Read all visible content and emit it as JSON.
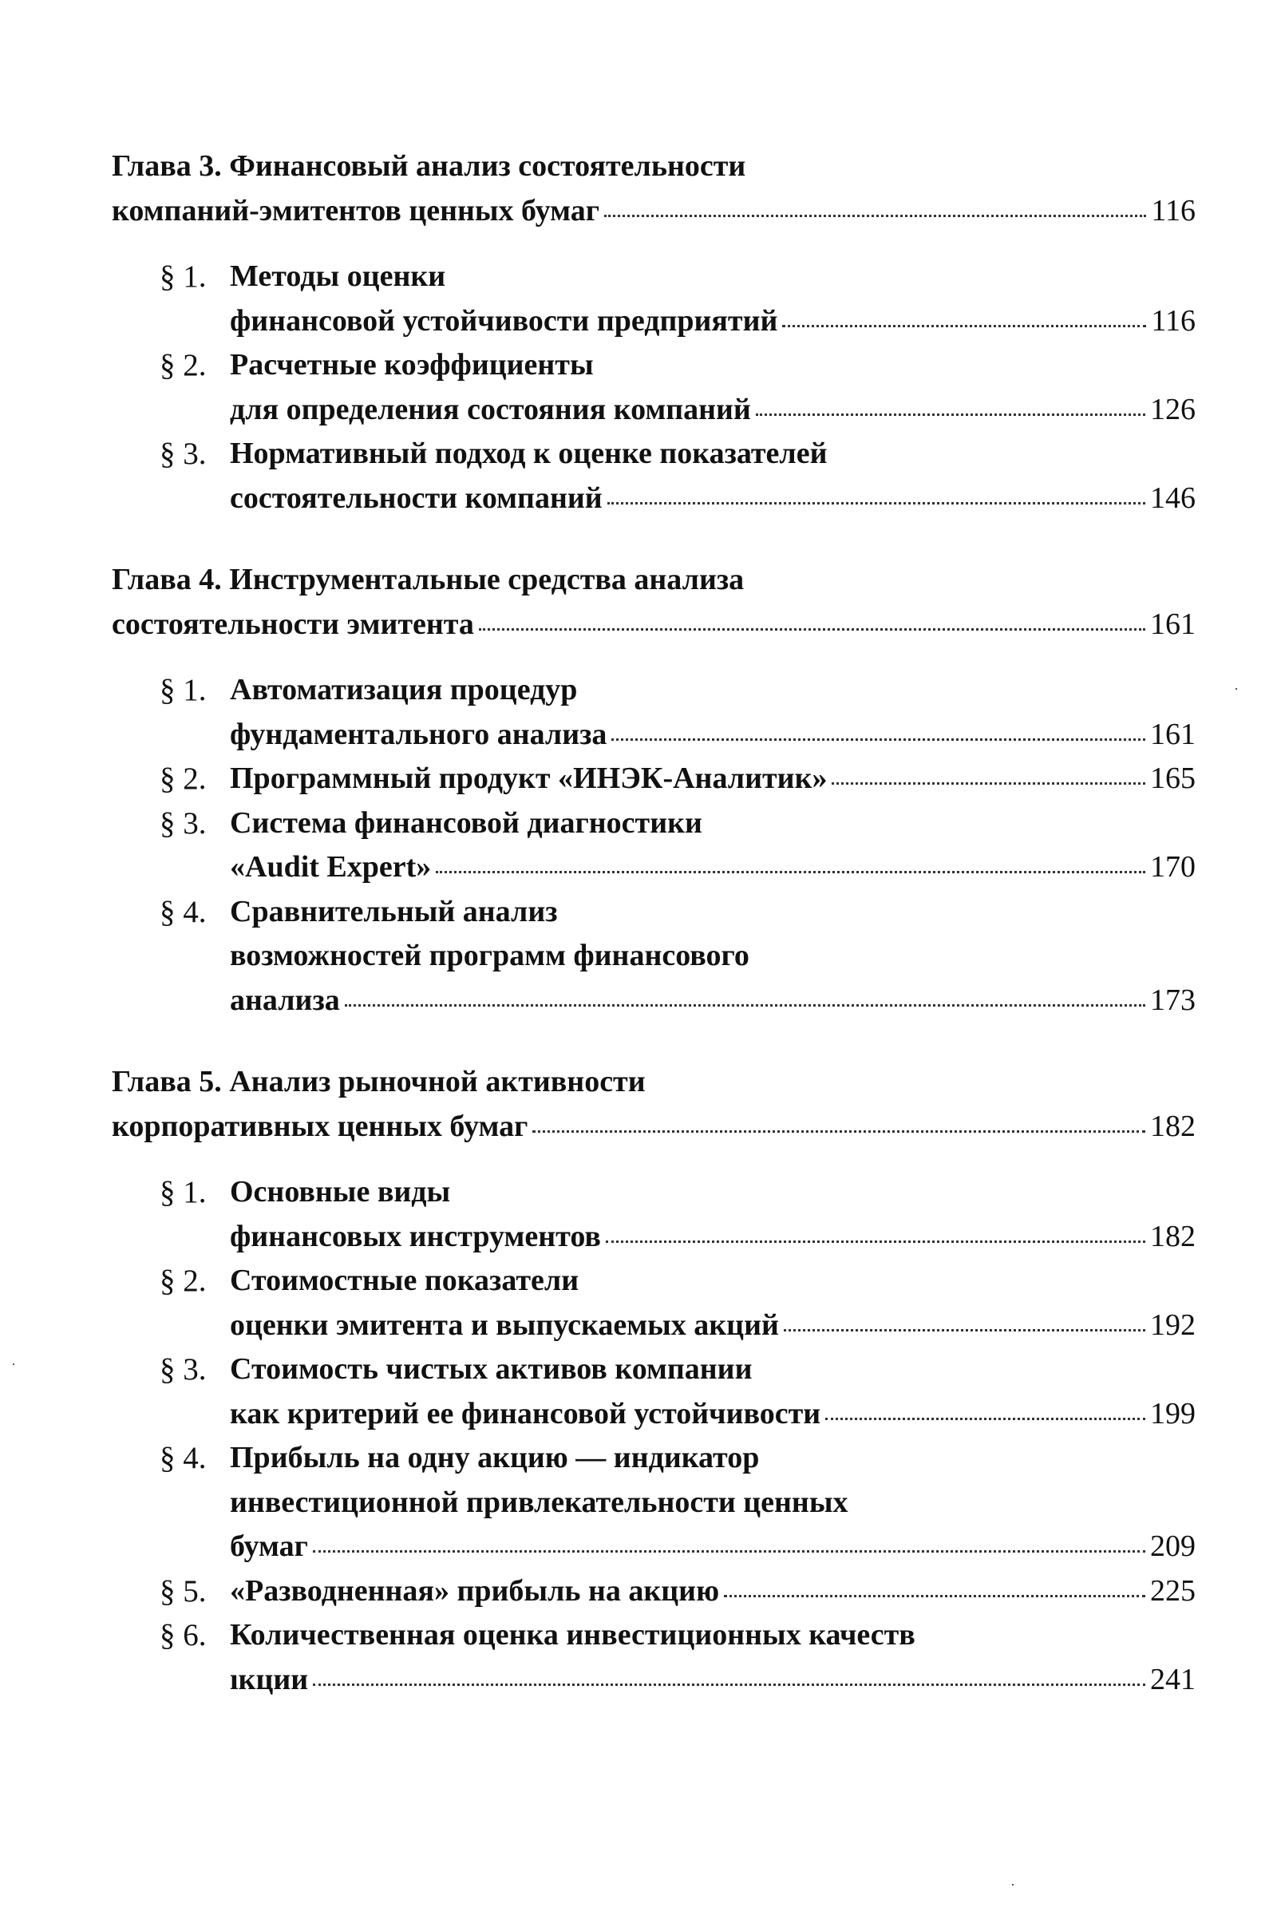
{
  "chapters": [
    {
      "title_lines": [
        "Глава 3. Финансовый анализ состоятельности",
        "компаний-эмитентов ценных бумаг"
      ],
      "page": "116",
      "sections": [
        {
          "num": "§ 1.",
          "lines": [
            "Методы оценки",
            "финансовой устойчивости предприятий"
          ],
          "page": "116"
        },
        {
          "num": "§ 2.",
          "lines": [
            "Расчетные коэффициенты",
            "для определения состояния компаний"
          ],
          "page": "126"
        },
        {
          "num": "§ 3.",
          "lines": [
            "Нормативный подход к оценке показателей",
            "состоятельности компаний"
          ],
          "page": "146"
        }
      ]
    },
    {
      "title_lines": [
        "Глава 4. Инструментальные средства анализа",
        "состоятельности эмитента"
      ],
      "page": "161",
      "sections": [
        {
          "num": "§ 1.",
          "lines": [
            "Автоматизация процедур",
            "фундаментального анализа"
          ],
          "page": "161"
        },
        {
          "num": "§ 2.",
          "lines": [
            "Программный продукт «ИНЭК-Аналитик»"
          ],
          "page": "165"
        },
        {
          "num": "§ 3.",
          "lines": [
            "Система финансовой диагностики",
            "«Audit Expert»"
          ],
          "page": "170"
        },
        {
          "num": "§ 4.",
          "lines": [
            "Сравнительный анализ",
            "возможностей программ финансового",
            "анализа"
          ],
          "page": "173"
        }
      ]
    },
    {
      "title_lines": [
        "Глава 5. Анализ рыночной активности",
        "корпоративных ценных бумаг"
      ],
      "page": "182",
      "sections": [
        {
          "num": "§ 1.",
          "lines": [
            "Основные виды",
            "финансовых инструментов"
          ],
          "page": "182"
        },
        {
          "num": "§ 2.",
          "lines": [
            "Стоимостные показатели",
            "оценки эмитента и выпускаемых акций"
          ],
          "page": "192"
        },
        {
          "num": "§ 3.",
          "lines": [
            "Стоимость чистых активов компании",
            "как критерий ее финансовой устойчивости"
          ],
          "page": "199"
        },
        {
          "num": "§ 4.",
          "lines": [
            "Прибыль на одну акцию — индикатор",
            "инвестиционной привлекательности ценных",
            "бумаг"
          ],
          "page": "209"
        },
        {
          "num": "§ 5.",
          "lines": [
            "«Разводненная» прибыль на акцию"
          ],
          "page": "225"
        },
        {
          "num": "§ 6.",
          "lines": [
            "Количественная оценка инвестиционных качеств",
            "ıкции"
          ],
          "page": "241"
        }
      ]
    }
  ]
}
